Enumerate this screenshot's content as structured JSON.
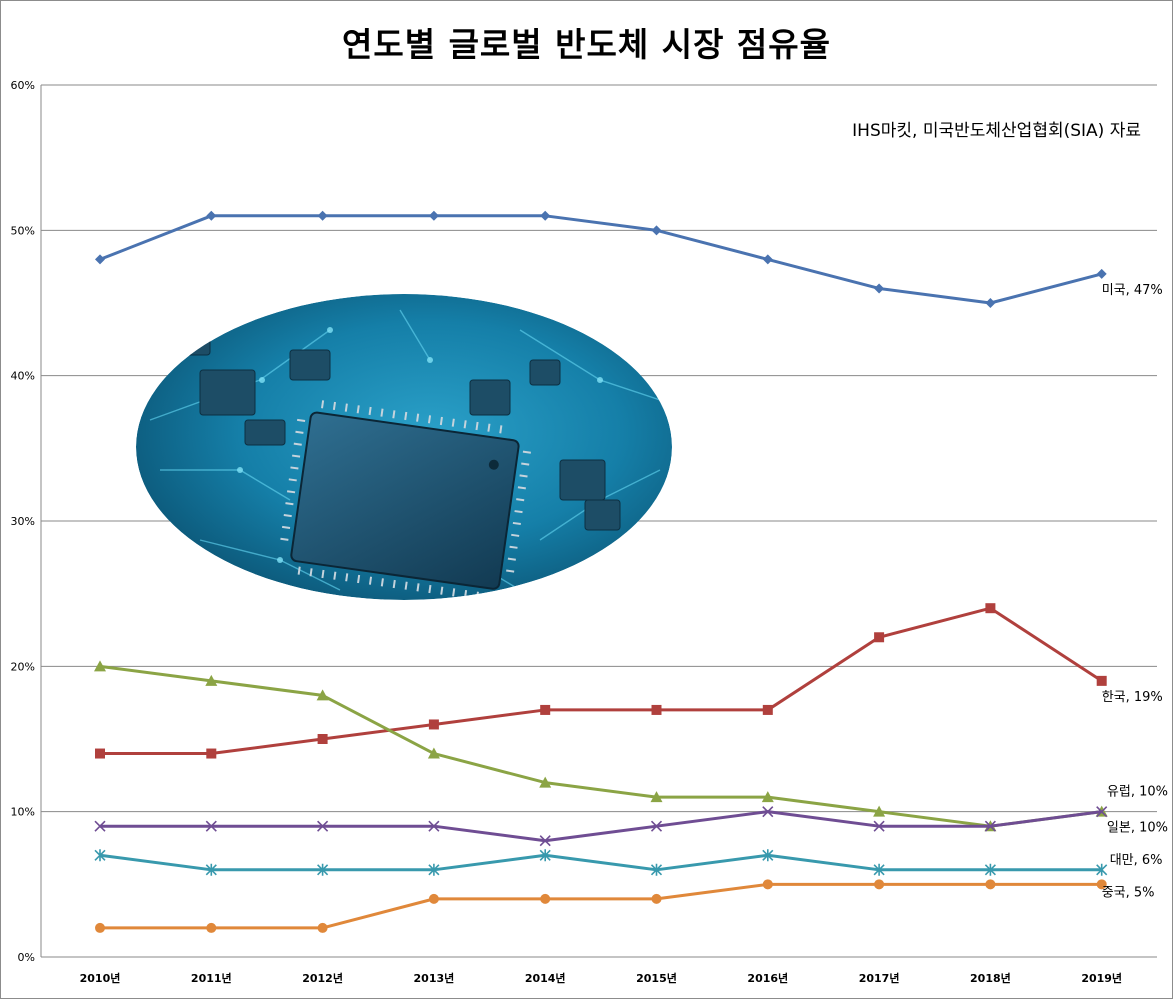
{
  "chart_data": {
    "type": "line",
    "title": "연도별 글로벌 반도체 시장 점유율",
    "annotation": "IHS마킷, 미국반도체산업협회(SIA) 자료",
    "xlabel": "",
    "ylabel": "",
    "categories": [
      "2010년",
      "2011년",
      "2012년",
      "2013년",
      "2014년",
      "2015년",
      "2016년",
      "2017년",
      "2018년",
      "2019년"
    ],
    "ylim": [
      0,
      60
    ],
    "yticks": [
      0,
      10,
      20,
      30,
      40,
      50,
      60
    ],
    "ytick_labels": [
      "0%",
      "10%",
      "20%",
      "30%",
      "40%",
      "50%",
      "60%"
    ],
    "grid": true,
    "legend": "end-of-line labels",
    "series": [
      {
        "name": "미국",
        "end_label": "미국, 47%",
        "color": "#4a73b0",
        "marker": "diamond",
        "values": [
          48,
          51,
          51,
          51,
          51,
          50,
          48,
          46,
          45,
          47
        ]
      },
      {
        "name": "한국",
        "end_label": "한국, 19%",
        "color": "#b0403d",
        "marker": "square",
        "values": [
          14,
          14,
          15,
          16,
          17,
          17,
          17,
          22,
          24,
          19
        ]
      },
      {
        "name": "유럽",
        "end_label": "유럽, 10%",
        "color": "#8ba445",
        "marker": "triangle",
        "values": [
          20,
          19,
          18,
          14,
          12,
          11,
          11,
          10,
          9,
          10
        ]
      },
      {
        "name": "일본",
        "end_label": "일본, 10%",
        "color": "#6f4d93",
        "marker": "x",
        "values": [
          9,
          9,
          9,
          9,
          8,
          9,
          10,
          9,
          9,
          10
        ]
      },
      {
        "name": "대만",
        "end_label": "대만, 6%",
        "color": "#3899ad",
        "marker": "star",
        "values": [
          7,
          6,
          6,
          6,
          7,
          6,
          7,
          6,
          6,
          6
        ]
      },
      {
        "name": "중국",
        "end_label": "중국, 5%",
        "color": "#e0883a",
        "marker": "circle",
        "values": [
          2,
          2,
          2,
          4,
          4,
          4,
          5,
          5,
          5,
          5
        ]
      }
    ]
  }
}
